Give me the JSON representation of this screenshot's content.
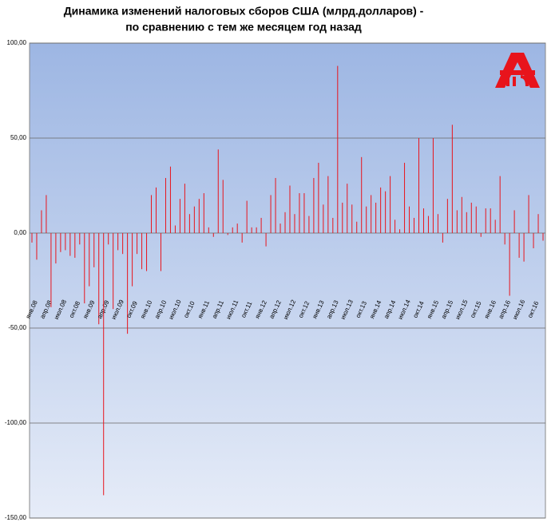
{
  "chart_data": {
    "type": "bar",
    "title": [
      "Динамика изменений налоговых сборов США (млрд.долларов) -",
      "по сравнению с тем же месяцем год назад"
    ],
    "categories": [
      "янв.08",
      null,
      null,
      "апр.08",
      null,
      null,
      "июл.08",
      null,
      null,
      "окт.08",
      null,
      null,
      "янв.09",
      null,
      null,
      "апр.09",
      null,
      null,
      "июл.09",
      null,
      null,
      "окт.09",
      null,
      null,
      "янв.10",
      null,
      null,
      "апр.10",
      null,
      null,
      "июл.10",
      null,
      null,
      "окт.10",
      null,
      null,
      "янв.11",
      null,
      null,
      "апр.11",
      null,
      null,
      "июл.11",
      null,
      null,
      "окт.11",
      null,
      null,
      "янв.12",
      null,
      null,
      "апр.12",
      null,
      null,
      "июл.12",
      null,
      null,
      "окт.12",
      null,
      null,
      "янв.13",
      null,
      null,
      "апр.13",
      null,
      null,
      "июл.13",
      null,
      null,
      "окт.13",
      null,
      null,
      "янв.14",
      null,
      null,
      "апр.14",
      null,
      null,
      "июл.14",
      null,
      null,
      "окт.14",
      null,
      null,
      "янв.15",
      null,
      null,
      "апр.15",
      null,
      null,
      "июл.15",
      null,
      null,
      "окт.15",
      null,
      null,
      "янв.16",
      null,
      null,
      "апр.16",
      null,
      null,
      "июл.16",
      null,
      null,
      "окт.16",
      null,
      null
    ],
    "values": [
      -5,
      -14,
      12,
      20,
      -39,
      -16,
      -10,
      -9,
      -12,
      -13,
      -6,
      -37,
      -28,
      -18,
      -48,
      -138,
      -6,
      -40,
      -9,
      -11,
      -53,
      -28,
      -11,
      -19,
      -20,
      20,
      24,
      -20,
      29,
      35,
      4,
      18,
      26,
      10,
      14,
      18,
      21,
      3,
      -2,
      44,
      28,
      -1,
      3,
      5,
      -5,
      17,
      3,
      3,
      8,
      -7,
      20,
      29,
      5,
      11,
      25,
      10,
      21,
      21,
      9,
      29,
      37,
      15,
      30,
      8,
      88,
      16,
      26,
      15,
      6,
      40,
      14,
      20,
      16,
      24,
      22,
      30,
      7,
      2,
      37,
      14,
      8,
      50,
      13,
      9,
      50,
      10,
      -5,
      18,
      57,
      12,
      19,
      11,
      16,
      14,
      -2,
      13,
      13,
      7,
      30,
      -6,
      -33,
      12,
      -13,
      -15,
      20,
      -8,
      10,
      -4
    ],
    "color": "#e8141c",
    "ylim": [
      -150,
      100
    ],
    "yticks": [
      {
        "value": -150,
        "label": "-150,00"
      },
      {
        "value": -100,
        "label": "-100,00"
      },
      {
        "value": -50,
        "label": "-50,00"
      },
      {
        "value": 0,
        "label": "0,00"
      },
      {
        "value": 50,
        "label": "50,00"
      },
      {
        "value": 100,
        "label": "100,00"
      }
    ],
    "grid": true
  }
}
